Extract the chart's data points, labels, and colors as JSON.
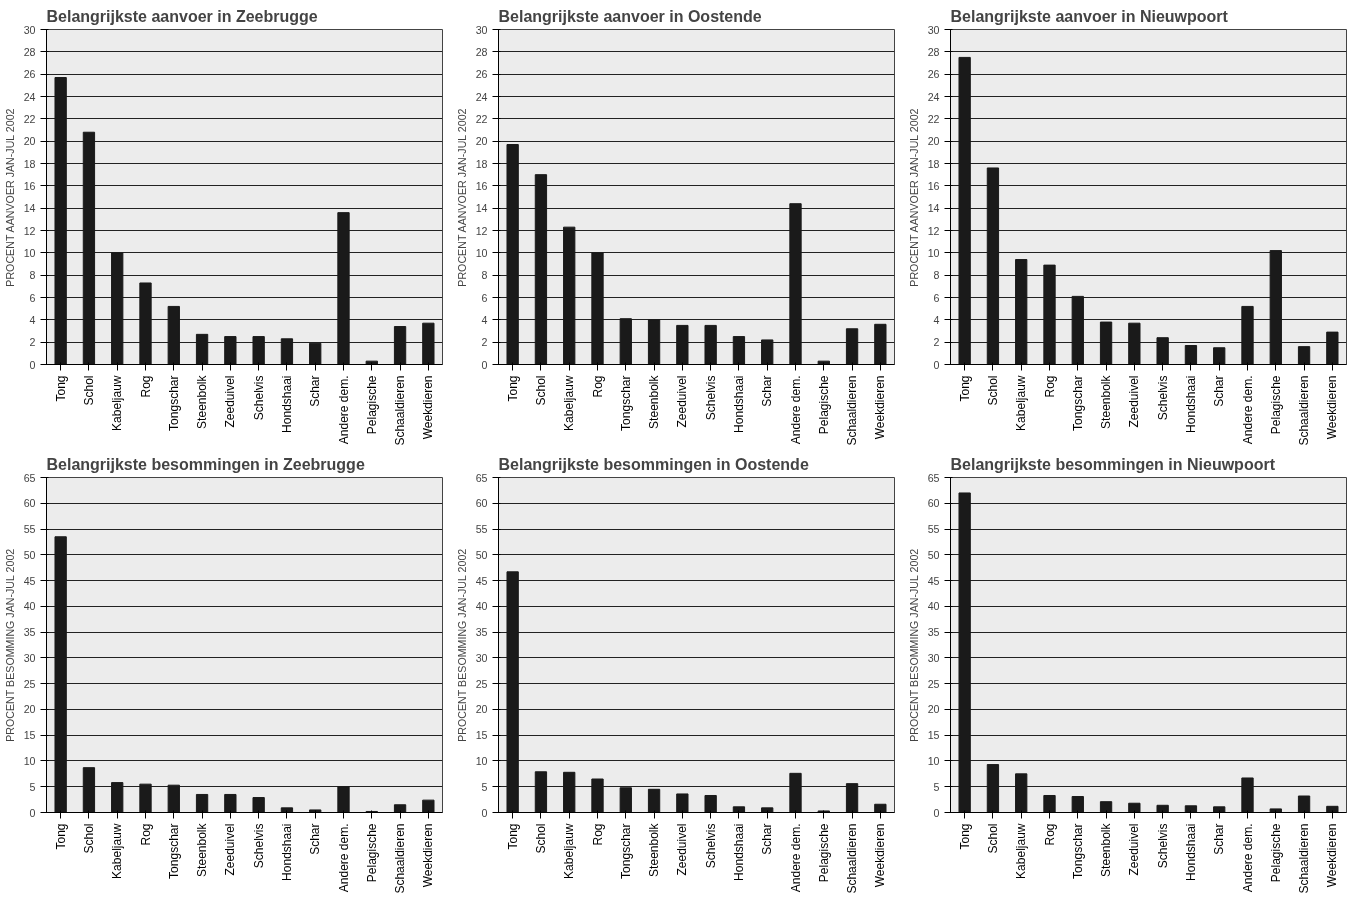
{
  "chart_data": [
    {
      "type": "bar",
      "title": "Belangrijkste aanvoer in Zeebrugge",
      "ylabel": "PROCENT AANVOER JAN-JUL 2002",
      "categories": [
        "Tong",
        "Schol",
        "Kabeljauw",
        "Rog",
        "Tongschar",
        "Steenbolk",
        "Zeeduivel",
        "Schelvis",
        "Hondshaai",
        "Schar",
        "Andere dem.",
        "Pelagische",
        "Schaaldieren",
        "Weekdieren"
      ],
      "values": [
        25.7,
        20.8,
        10,
        7.3,
        5.2,
        2.7,
        2.5,
        2.5,
        2.3,
        1.9,
        13.6,
        0.3,
        3.4,
        3.7
      ],
      "color": "#1a1a1a",
      "ylim": [
        0,
        30
      ],
      "yticks": [
        0,
        2,
        4,
        6,
        8,
        10,
        12,
        14,
        16,
        18,
        20,
        22,
        24,
        26,
        28,
        30
      ],
      "grid": "y"
    },
    {
      "type": "bar",
      "title": "Belangrijkste aanvoer in Oostende",
      "ylabel": "PROCENT AANVOER JAN-JUL 2002",
      "categories": [
        "Tong",
        "Schol",
        "Kabeljauw",
        "Rog",
        "Tongschar",
        "Steenbolk",
        "Zeeduivel",
        "Schelvis",
        "Hondshaai",
        "Schar",
        "Andere dem.",
        "Pelagische",
        "Schaaldieren",
        "Weekdieren"
      ],
      "values": [
        19.7,
        17,
        12.3,
        10,
        4.1,
        4,
        3.5,
        3.5,
        2.5,
        2.2,
        14.4,
        0.3,
        3.2,
        3.6
      ],
      "color": "#1a1a1a",
      "ylim": [
        0,
        30
      ],
      "yticks": [
        0,
        2,
        4,
        6,
        8,
        10,
        12,
        14,
        16,
        18,
        20,
        22,
        24,
        26,
        28,
        30
      ],
      "grid": "y"
    },
    {
      "type": "bar",
      "title": "Belangrijkste aanvoer in Nieuwpoort",
      "ylabel": "PROCENT AANVOER JAN-JUL 2002",
      "categories": [
        "Tong",
        "Schol",
        "Kabeljauw",
        "Rog",
        "Tongschar",
        "Steenbolk",
        "Zeeduivel",
        "Schelvis",
        "Hondshaai",
        "Schar",
        "Andere dem.",
        "Pelagische",
        "Schaaldieren",
        "Weekdieren"
      ],
      "values": [
        27.5,
        17.6,
        9.4,
        8.9,
        6.1,
        3.8,
        3.7,
        2.4,
        1.7,
        1.5,
        5.2,
        10.2,
        1.6,
        2.9
      ],
      "color": "#1a1a1a",
      "ylim": [
        0,
        30
      ],
      "yticks": [
        0,
        2,
        4,
        6,
        8,
        10,
        12,
        14,
        16,
        18,
        20,
        22,
        24,
        26,
        28,
        30
      ],
      "grid": "y"
    },
    {
      "type": "bar",
      "title": "Belangrijkste besommingen in Zeebrugge",
      "ylabel": "PROCENT BESOMMING JAN-JUL 2002",
      "categories": [
        "Tong",
        "Schol",
        "Kabeljauw",
        "Rog",
        "Tongschar",
        "Steenbolk",
        "Zeeduivel",
        "Schelvis",
        "Hondshaai",
        "Schar",
        "Andere dem.",
        "Pelagische",
        "Schaaldieren",
        "Weekdieren"
      ],
      "values": [
        53.5,
        8.7,
        5.8,
        5.5,
        5.3,
        3.5,
        3.5,
        2.9,
        0.9,
        0.5,
        5,
        0.2,
        1.5,
        2.4
      ],
      "color": "#1a1a1a",
      "ylim": [
        0,
        65
      ],
      "yticks": [
        0,
        5,
        10,
        15,
        20,
        25,
        30,
        35,
        40,
        45,
        50,
        55,
        60,
        65
      ],
      "grid": "y"
    },
    {
      "type": "bar",
      "title": "Belangrijkste besommingen in Oostende",
      "ylabel": "PROCENT BESOMMING JAN-JUL 2002",
      "categories": [
        "Tong",
        "Schol",
        "Kabeljauw",
        "Rog",
        "Tongschar",
        "Steenbolk",
        "Zeeduivel",
        "Schelvis",
        "Hondshaai",
        "Schar",
        "Andere dem.",
        "Pelagische",
        "Schaaldieren",
        "Weekdieren"
      ],
      "values": [
        46.7,
        7.9,
        7.8,
        6.5,
        4.8,
        4.5,
        3.6,
        3.3,
        1.1,
        0.9,
        7.6,
        0.3,
        5.6,
        1.6
      ],
      "color": "#1a1a1a",
      "ylim": [
        0,
        65
      ],
      "yticks": [
        0,
        5,
        10,
        15,
        20,
        25,
        30,
        35,
        40,
        45,
        50,
        55,
        60,
        65
      ],
      "grid": "y"
    },
    {
      "type": "bar",
      "title": "Belangrijkste besommingen in Nieuwpoort",
      "ylabel": "PROCENT BESOMMING JAN-JUL 2002",
      "categories": [
        "Tong",
        "Schol",
        "Kabeljauw",
        "Rog",
        "Tongschar",
        "Steenbolk",
        "Zeeduivel",
        "Schelvis",
        "Hondshaai",
        "Schar",
        "Andere dem.",
        "Pelagische",
        "Schaaldieren",
        "Weekdieren"
      ],
      "values": [
        62,
        9.3,
        7.5,
        3.3,
        3.1,
        2.1,
        1.8,
        1.4,
        1.3,
        1.1,
        6.7,
        0.7,
        3.2,
        1.2
      ],
      "color": "#1a1a1a",
      "ylim": [
        0,
        65
      ],
      "yticks": [
        0,
        5,
        10,
        15,
        20,
        25,
        30,
        35,
        40,
        45,
        50,
        55,
        60,
        65
      ],
      "grid": "y"
    }
  ]
}
